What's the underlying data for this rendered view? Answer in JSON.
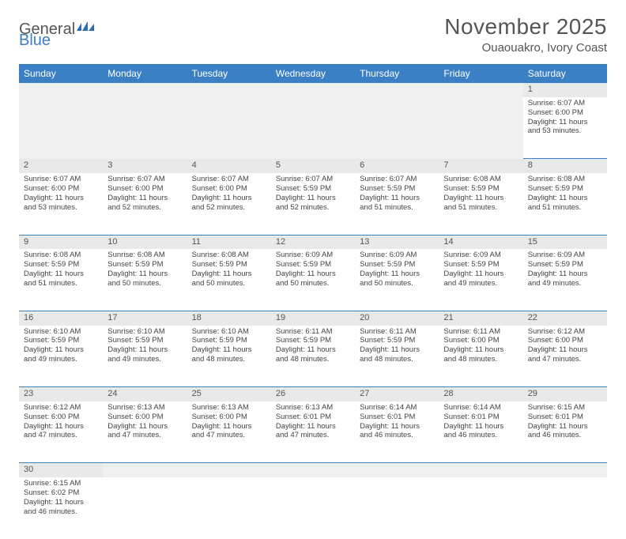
{
  "brand": {
    "part1": "General",
    "part2": "Blue"
  },
  "title": "November 2025",
  "location": "Ouaouakro, Ivory Coast",
  "colors": {
    "header_bg": "#3b7fc4",
    "header_text": "#ffffff",
    "daynum_bg": "#e9e9e9",
    "blank_bg": "#f0f0f0",
    "cell_border": "#3b7fc4",
    "text": "#444444"
  },
  "typography": {
    "title_fontsize": 28,
    "location_fontsize": 15,
    "dayheader_fontsize": 12,
    "daynum_fontsize": 11,
    "cell_fontsize": 9.5
  },
  "day_headers": [
    "Sunday",
    "Monday",
    "Tuesday",
    "Wednesday",
    "Thursday",
    "Friday",
    "Saturday"
  ],
  "weeks": [
    [
      null,
      null,
      null,
      null,
      null,
      null,
      {
        "n": "1",
        "sr": "6:07 AM",
        "ss": "6:00 PM",
        "dl": "11 hours and 53 minutes."
      }
    ],
    [
      {
        "n": "2",
        "sr": "6:07 AM",
        "ss": "6:00 PM",
        "dl": "11 hours and 53 minutes."
      },
      {
        "n": "3",
        "sr": "6:07 AM",
        "ss": "6:00 PM",
        "dl": "11 hours and 52 minutes."
      },
      {
        "n": "4",
        "sr": "6:07 AM",
        "ss": "6:00 PM",
        "dl": "11 hours and 52 minutes."
      },
      {
        "n": "5",
        "sr": "6:07 AM",
        "ss": "5:59 PM",
        "dl": "11 hours and 52 minutes."
      },
      {
        "n": "6",
        "sr": "6:07 AM",
        "ss": "5:59 PM",
        "dl": "11 hours and 51 minutes."
      },
      {
        "n": "7",
        "sr": "6:08 AM",
        "ss": "5:59 PM",
        "dl": "11 hours and 51 minutes."
      },
      {
        "n": "8",
        "sr": "6:08 AM",
        "ss": "5:59 PM",
        "dl": "11 hours and 51 minutes."
      }
    ],
    [
      {
        "n": "9",
        "sr": "6:08 AM",
        "ss": "5:59 PM",
        "dl": "11 hours and 51 minutes."
      },
      {
        "n": "10",
        "sr": "6:08 AM",
        "ss": "5:59 PM",
        "dl": "11 hours and 50 minutes."
      },
      {
        "n": "11",
        "sr": "6:08 AM",
        "ss": "5:59 PM",
        "dl": "11 hours and 50 minutes."
      },
      {
        "n": "12",
        "sr": "6:09 AM",
        "ss": "5:59 PM",
        "dl": "11 hours and 50 minutes."
      },
      {
        "n": "13",
        "sr": "6:09 AM",
        "ss": "5:59 PM",
        "dl": "11 hours and 50 minutes."
      },
      {
        "n": "14",
        "sr": "6:09 AM",
        "ss": "5:59 PM",
        "dl": "11 hours and 49 minutes."
      },
      {
        "n": "15",
        "sr": "6:09 AM",
        "ss": "5:59 PM",
        "dl": "11 hours and 49 minutes."
      }
    ],
    [
      {
        "n": "16",
        "sr": "6:10 AM",
        "ss": "5:59 PM",
        "dl": "11 hours and 49 minutes."
      },
      {
        "n": "17",
        "sr": "6:10 AM",
        "ss": "5:59 PM",
        "dl": "11 hours and 49 minutes."
      },
      {
        "n": "18",
        "sr": "6:10 AM",
        "ss": "5:59 PM",
        "dl": "11 hours and 48 minutes."
      },
      {
        "n": "19",
        "sr": "6:11 AM",
        "ss": "5:59 PM",
        "dl": "11 hours and 48 minutes."
      },
      {
        "n": "20",
        "sr": "6:11 AM",
        "ss": "5:59 PM",
        "dl": "11 hours and 48 minutes."
      },
      {
        "n": "21",
        "sr": "6:11 AM",
        "ss": "6:00 PM",
        "dl": "11 hours and 48 minutes."
      },
      {
        "n": "22",
        "sr": "6:12 AM",
        "ss": "6:00 PM",
        "dl": "11 hours and 47 minutes."
      }
    ],
    [
      {
        "n": "23",
        "sr": "6:12 AM",
        "ss": "6:00 PM",
        "dl": "11 hours and 47 minutes."
      },
      {
        "n": "24",
        "sr": "6:13 AM",
        "ss": "6:00 PM",
        "dl": "11 hours and 47 minutes."
      },
      {
        "n": "25",
        "sr": "6:13 AM",
        "ss": "6:00 PM",
        "dl": "11 hours and 47 minutes."
      },
      {
        "n": "26",
        "sr": "6:13 AM",
        "ss": "6:01 PM",
        "dl": "11 hours and 47 minutes."
      },
      {
        "n": "27",
        "sr": "6:14 AM",
        "ss": "6:01 PM",
        "dl": "11 hours and 46 minutes."
      },
      {
        "n": "28",
        "sr": "6:14 AM",
        "ss": "6:01 PM",
        "dl": "11 hours and 46 minutes."
      },
      {
        "n": "29",
        "sr": "6:15 AM",
        "ss": "6:01 PM",
        "dl": "11 hours and 46 minutes."
      }
    ],
    [
      {
        "n": "30",
        "sr": "6:15 AM",
        "ss": "6:02 PM",
        "dl": "11 hours and 46 minutes."
      },
      null,
      null,
      null,
      null,
      null,
      null
    ]
  ],
  "labels": {
    "sunrise": "Sunrise: ",
    "sunset": "Sunset: ",
    "daylight": "Daylight: "
  }
}
